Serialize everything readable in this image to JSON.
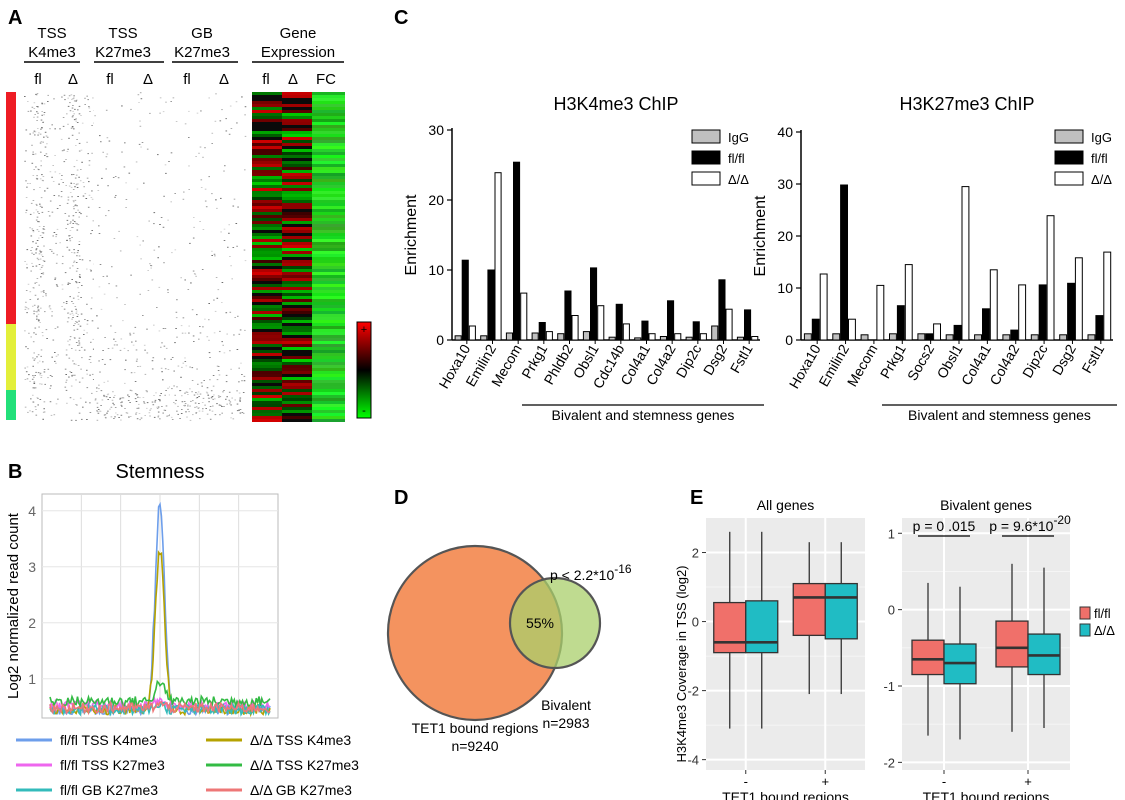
{
  "panels": {
    "A": "A",
    "B": "B",
    "C": "C",
    "D": "D",
    "E": "E"
  },
  "panelA": {
    "groups": [
      "TSS\nK4me3",
      "TSS\nK27me3",
      "GB\nK27me3",
      "Gene\nExpression"
    ],
    "cols": [
      "fl",
      "Δ",
      "fl",
      "Δ",
      "fl",
      "Δ",
      "fl",
      "Δ",
      "FC"
    ],
    "scale_plus": "+",
    "scale_minus": "-",
    "side_colors": [
      "#ee1c24",
      "#e3ef3a",
      "#22e07a"
    ]
  },
  "chart_data": [
    {
      "id": "B",
      "type": "line",
      "title": "Stemness",
      "ylabel": "Log2 normalized read count",
      "yticks": [
        "1",
        "2",
        "3",
        "4"
      ],
      "ylim": [
        0.3,
        4.3
      ],
      "series": [
        {
          "name": "fl/fl TSS K4me3",
          "color": "#6d9eeb",
          "peak": 4.15,
          "base": 0.45
        },
        {
          "name": "Δ/Δ TSS K4me3",
          "color": "#b5a200",
          "peak": 3.3,
          "base": 0.45
        },
        {
          "name": "fl/fl TSS K27me3",
          "color": "#ee66ee",
          "peak": 0.62,
          "base": 0.52
        },
        {
          "name": "Δ/Δ TSS K27me3",
          "color": "#33bb44",
          "peak": 0.95,
          "base": 0.6
        },
        {
          "name": "fl/fl GB K27me3",
          "color": "#33bbbb",
          "peak": 0.55,
          "base": 0.45
        },
        {
          "name": "Δ/Δ GB K27me3",
          "color": "#ee7777",
          "peak": 0.55,
          "base": 0.48
        }
      ]
    },
    {
      "id": "C1",
      "type": "bar",
      "title": "H3K4me3 ChIP",
      "ylabel": "Enrichment",
      "ylim": [
        0,
        30
      ],
      "yticks": [
        "0",
        "10",
        "20",
        "30"
      ],
      "categories": [
        "Hoxa10",
        "Emilin2",
        "Mecom",
        "Prkg1",
        "Phldb2",
        "Obsl1",
        "Cdc14b",
        "Col4a1",
        "Col4a2",
        "Dip2c",
        "Dsg2",
        "Fstl1"
      ],
      "series": [
        {
          "name": "IgG",
          "color": "#c0c0c0",
          "values": [
            0.6,
            0.6,
            1.0,
            1.0,
            0.9,
            1.2,
            0.4,
            0.3,
            0.5,
            0.4,
            2.0,
            0.4
          ]
        },
        {
          "name": "fl/fl",
          "color": "#000000",
          "values": [
            11.4,
            10.0,
            25.4,
            2.5,
            7.0,
            10.3,
            5.1,
            2.7,
            5.6,
            2.6,
            8.6,
            4.3
          ]
        },
        {
          "name": "Δ/Δ",
          "color": "#ffffff",
          "values": [
            2.0,
            23.9,
            6.7,
            1.2,
            3.5,
            4.9,
            2.3,
            0.9,
            0.9,
            0.9,
            4.4,
            0.5
          ]
        }
      ],
      "bracket_label": "Bivalent and stemness genes"
    },
    {
      "id": "C2",
      "type": "bar",
      "title": "H3K27me3 ChIP",
      "ylabel": "Enrichment",
      "ylim": [
        0,
        40
      ],
      "yticks": [
        "0",
        "10",
        "20",
        "30",
        "40"
      ],
      "categories": [
        "Hoxa10",
        "Emilin2",
        "Mecom",
        "Prkg1",
        "Socs2",
        "Obsl1",
        "Col4a1",
        "Col4a2",
        "Dip2c",
        "Dsg2",
        "Fstl1"
      ],
      "series": [
        {
          "name": "IgG",
          "color": "#c0c0c0",
          "values": [
            1.2,
            1.2,
            1.0,
            1.2,
            1.2,
            1.0,
            1.0,
            1.0,
            1.0,
            1.0,
            1.0
          ]
        },
        {
          "name": "fl/fl",
          "color": "#000000",
          "values": [
            4.0,
            29.8,
            0.0,
            6.6,
            1.2,
            2.8,
            6.0,
            1.9,
            10.6,
            10.9,
            4.7
          ]
        },
        {
          "name": "Δ/Δ",
          "color": "#ffffff",
          "values": [
            12.7,
            4.0,
            10.5,
            14.5,
            3.1,
            29.5,
            13.5,
            10.6,
            23.9,
            15.8,
            16.9
          ]
        }
      ],
      "bracket_label": "Bivalent and stemness genes"
    },
    {
      "id": "D",
      "type": "venn",
      "sets": [
        {
          "name": "TET1 bound regions",
          "count_label": "n=9240",
          "color": "#f4935f"
        },
        {
          "name": "Bivalent",
          "count_label": "n=2983",
          "color": "#a9cf6b"
        }
      ],
      "overlap_label": "55%",
      "pvalue_base": "p < 2.2*10",
      "pvalue_exp": "-16"
    },
    {
      "id": "E",
      "type": "box",
      "ylabel": "H3K4me3 Coverage in TSS (log2)",
      "xlabel": "TET1 bound regions",
      "legend": [
        {
          "name": "fl/fl",
          "color": "#f0706a"
        },
        {
          "name": "Δ/Δ",
          "color": "#20bcc4"
        }
      ],
      "facets": [
        {
          "title": "All genes",
          "ylim": [
            -4.3,
            3.0
          ],
          "yticks": [
            -4,
            -2,
            0,
            2
          ],
          "ytick_labels": [
            "-4",
            "-2",
            "0",
            "2"
          ],
          "categories": [
            "-",
            "+"
          ],
          "boxes": [
            {
              "cat": "-",
              "group": "fl/fl",
              "min": -3.1,
              "q1": -0.9,
              "median": -0.6,
              "q3": 0.55,
              "max": 2.6
            },
            {
              "cat": "-",
              "group": "Δ/Δ",
              "min": -3.1,
              "q1": -0.9,
              "median": -0.6,
              "q3": 0.6,
              "max": 2.6
            },
            {
              "cat": "+",
              "group": "fl/fl",
              "min": -2.1,
              "q1": -0.4,
              "median": 0.7,
              "q3": 1.1,
              "max": 2.3
            },
            {
              "cat": "+",
              "group": "Δ/Δ",
              "min": -2.1,
              "q1": -0.5,
              "median": 0.7,
              "q3": 1.1,
              "max": 2.3
            }
          ],
          "annotations": []
        },
        {
          "title": "Bivalent genes",
          "ylim": [
            -2.1,
            1.2
          ],
          "yticks": [
            -2,
            -1,
            0,
            1
          ],
          "ytick_labels": [
            "-2",
            "-1",
            "0",
            "1"
          ],
          "categories": [
            "-",
            "+"
          ],
          "boxes": [
            {
              "cat": "-",
              "group": "fl/fl",
              "min": -1.65,
              "q1": -0.85,
              "median": -0.65,
              "q3": -0.4,
              "max": 0.35
            },
            {
              "cat": "-",
              "group": "Δ/Δ",
              "min": -1.7,
              "q1": -0.97,
              "median": -0.7,
              "q3": -0.45,
              "max": 0.3
            },
            {
              "cat": "+",
              "group": "fl/fl",
              "min": -1.6,
              "q1": -0.75,
              "median": -0.5,
              "q3": -0.15,
              "max": 0.6
            },
            {
              "cat": "+",
              "group": "Δ/Δ",
              "min": -1.55,
              "q1": -0.85,
              "median": -0.6,
              "q3": -0.32,
              "max": 0.55
            }
          ],
          "annotations": [
            {
              "cat": "-",
              "text": "p = 0 .015"
            },
            {
              "cat": "+",
              "text_base": "p = 9.6*10",
              "text_exp": "-20"
            }
          ]
        }
      ]
    }
  ]
}
